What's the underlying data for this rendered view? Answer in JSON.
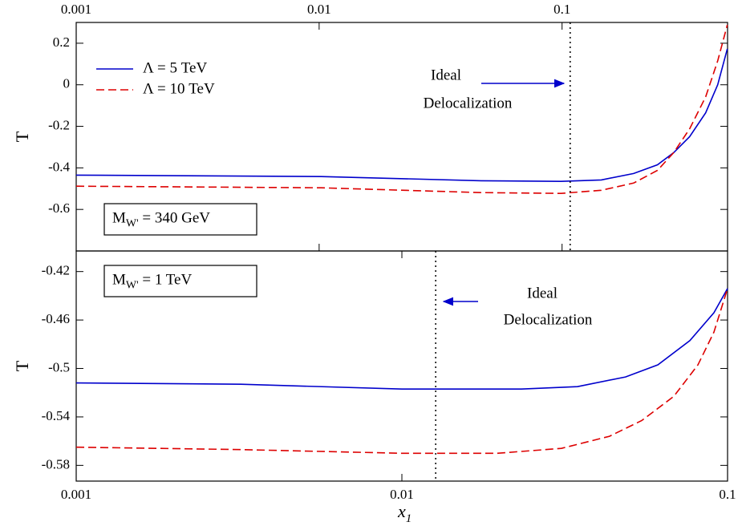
{
  "chart_data": [
    {
      "type": "line",
      "ylabel": "T",
      "xscale": "log",
      "xaxis_position": "top",
      "xlim": [
        0.001,
        0.48
      ],
      "xticks": [
        0.001,
        0.01,
        0.1
      ],
      "ylim": [
        -0.8,
        0.3
      ],
      "yticks": [
        0.2,
        0,
        -0.2,
        -0.4,
        -0.6
      ],
      "legend": "upper left",
      "series": [
        {
          "name": "Λ = 5 TeV",
          "color": "#0000cc",
          "dash": "solid",
          "x": [
            0.001,
            0.0102,
            0.0464,
            0.099,
            0.145,
            0.197,
            0.247,
            0.288,
            0.335,
            0.39,
            0.437,
            0.479
          ],
          "values": [
            -0.435,
            -0.442,
            -0.462,
            -0.465,
            -0.458,
            -0.427,
            -0.385,
            -0.327,
            -0.25,
            -0.135,
            0,
            0.173
          ]
        },
        {
          "name": "Λ = 10 TeV",
          "color": "#dd0000",
          "dash": "dashed",
          "x": [
            0.001,
            0.0102,
            0.0464,
            0.099,
            0.145,
            0.197,
            0.247,
            0.288,
            0.335,
            0.39,
            0.437,
            0.479
          ],
          "values": [
            -0.488,
            -0.496,
            -0.519,
            -0.523,
            -0.508,
            -0.473,
            -0.412,
            -0.327,
            -0.212,
            -0.058,
            0.115,
            0.288
          ]
        }
      ],
      "vline": 0.108,
      "box_label": [
        "M",
        "W'",
        " = 340 GeV"
      ],
      "annotation": [
        "Ideal",
        "Delocalization"
      ]
    },
    {
      "type": "line",
      "ylabel": "T",
      "xlabel": [
        "x",
        "1"
      ],
      "xscale": "log",
      "xaxis_position": "bottom",
      "xlim": [
        0.001,
        0.1
      ],
      "xticks": [
        0.001,
        0.01,
        0.1
      ],
      "ylim": [
        -0.593,
        -0.403
      ],
      "yticks": [
        -0.42,
        -0.46,
        -0.5,
        -0.54,
        -0.58
      ],
      "series": [
        {
          "color": "#0000cc",
          "dash": "solid",
          "x": [
            0.001,
            0.0032,
            0.01,
            0.0233,
            0.0346,
            0.0486,
            0.0611,
            0.0766,
            0.0908,
            0.1
          ],
          "values": [
            -0.512,
            -0.513,
            -0.517,
            -0.517,
            -0.515,
            -0.507,
            -0.497,
            -0.477,
            -0.454,
            -0.434
          ]
        },
        {
          "color": "#dd0000",
          "dash": "dashed",
          "x": [
            0.001,
            0.0032,
            0.01,
            0.0196,
            0.0309,
            0.0434,
            0.0545,
            0.0684,
            0.0811,
            0.0908,
            0.1
          ],
          "values": [
            -0.565,
            -0.567,
            -0.57,
            -0.57,
            -0.566,
            -0.556,
            -0.543,
            -0.523,
            -0.497,
            -0.47,
            -0.434
          ]
        }
      ],
      "vline": 0.0127,
      "box_label": [
        "M",
        "W'",
        " = 1 TeV"
      ],
      "annotation": [
        "Ideal",
        "Delocalization"
      ]
    }
  ]
}
